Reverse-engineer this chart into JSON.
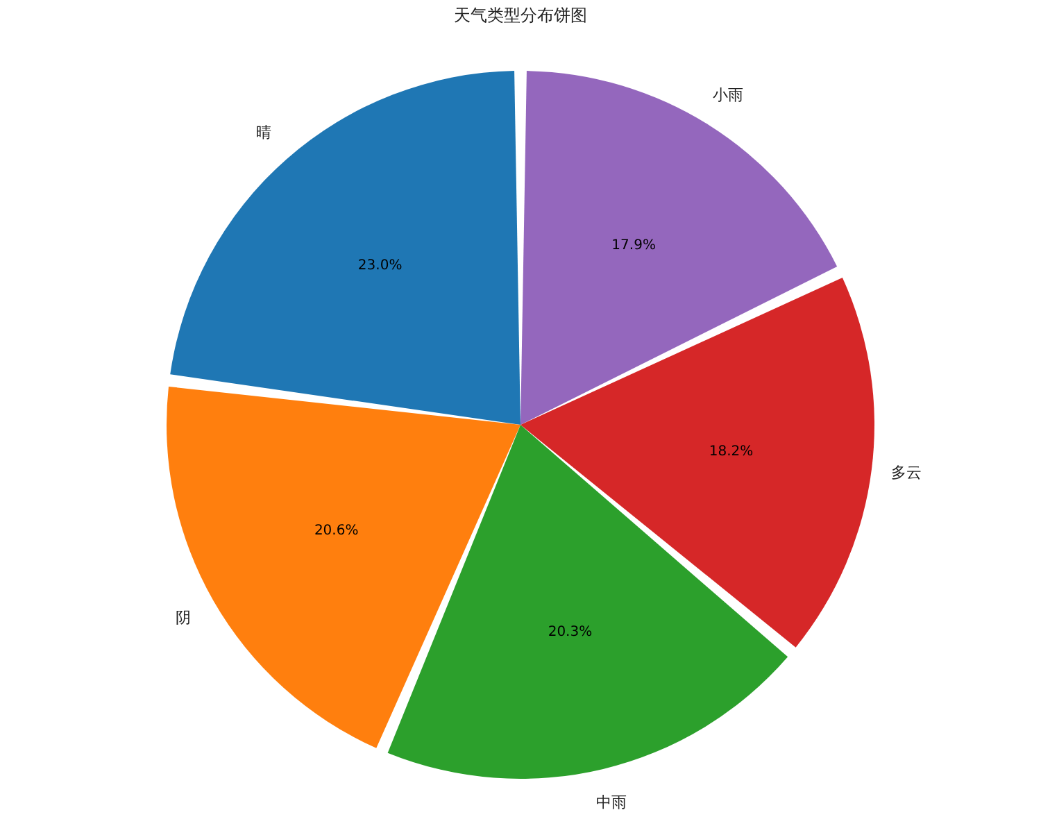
{
  "chart_data": {
    "type": "pie",
    "title": "天气类型分布饼图",
    "categories": [
      "晴",
      "阴",
      "中雨",
      "多云",
      "小雨"
    ],
    "values": [
      23.0,
      20.6,
      20.3,
      18.2,
      17.9
    ],
    "colors": [
      "#1f77b4",
      "#ff7f0e",
      "#2ca02c",
      "#d62728",
      "#9467bd"
    ],
    "value_labels": [
      "23.0%",
      "20.6%",
      "20.3%",
      "18.2%",
      "17.9%"
    ],
    "legend": false
  }
}
